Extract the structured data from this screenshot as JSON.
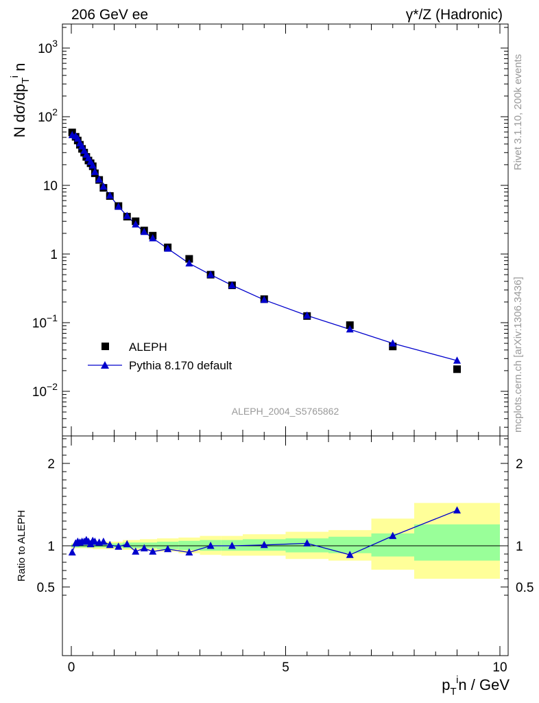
{
  "header": {
    "left_title": "206 GeV ee",
    "right_title": "γ*/Z (Hadronic)"
  },
  "side_labels": {
    "rivet": "Rivet 3.1.10,  200k events",
    "mcplots": "mcplots.cern.ch [arXiv:1306.3436]"
  },
  "analysis_label": "ALEPH_2004_S5765862",
  "chart_data": [
    {
      "type": "scatter",
      "panel": "main",
      "ylabel": "N dσ/dp_T^i n",
      "yscale": "log",
      "ylim": [
        0.003,
        2000
      ],
      "xlim": [
        -0.1,
        10.05
      ],
      "ytick_labels": [
        "10^-2",
        "10^-1",
        "1",
        "10",
        "10^2",
        "10^3"
      ],
      "legend": {
        "placement": "bottom-left",
        "entries": [
          "ALEPH",
          "Pythia 8.170 default"
        ]
      },
      "series": [
        {
          "name": "ALEPH",
          "style": "black squares",
          "x": [
            0.02,
            0.1,
            0.15,
            0.2,
            0.25,
            0.3,
            0.35,
            0.4,
            0.45,
            0.5,
            0.55,
            0.65,
            0.75,
            0.9,
            1.1,
            1.3,
            1.5,
            1.7,
            1.9,
            2.25,
            2.75,
            3.25,
            3.75,
            4.5,
            5.5,
            6.5,
            7.5,
            9.0
          ],
          "values": [
            59,
            51,
            45,
            39,
            34,
            30,
            26,
            23,
            21,
            19,
            15,
            12,
            9.2,
            7.0,
            5.0,
            3.5,
            3.0,
            2.2,
            1.85,
            1.25,
            0.85,
            0.5,
            0.35,
            0.22,
            0.125,
            0.092,
            0.045,
            0.021
          ]
        },
        {
          "name": "Pythia 8.170 default",
          "style": "blue line with triangles",
          "color": "#0000cc",
          "x": [
            0.02,
            0.1,
            0.15,
            0.2,
            0.25,
            0.3,
            0.35,
            0.4,
            0.45,
            0.5,
            0.55,
            0.65,
            0.75,
            0.9,
            1.1,
            1.3,
            1.5,
            1.7,
            1.9,
            2.25,
            2.75,
            3.25,
            3.75,
            4.5,
            5.5,
            6.5,
            7.5,
            9.0
          ],
          "values": [
            54,
            52,
            48,
            41,
            37,
            32,
            28,
            25,
            22,
            19.5,
            15.7,
            12.2,
            9.6,
            7.1,
            4.9,
            3.6,
            2.7,
            2.1,
            1.7,
            1.2,
            0.73,
            0.5,
            0.35,
            0.215,
            0.127,
            0.08,
            0.05,
            0.028
          ]
        }
      ]
    },
    {
      "type": "line",
      "panel": "ratio",
      "xlabel": "p_T^i n / GeV",
      "ylabel": "Ratio to ALEPH",
      "ylim": [
        0.4,
        2.4
      ],
      "xlim": [
        -0.1,
        10.05
      ],
      "xtick_labels": [
        "0",
        "5",
        "10"
      ],
      "ytick_labels": [
        "0.5",
        "1",
        "2"
      ],
      "bands": {
        "colors": {
          "inner": "#99ff99",
          "outer": "#ffff99"
        },
        "bins": [
          {
            "x0": 0.0,
            "x1": 0.25,
            "inner": [
              0.98,
              1.02
            ],
            "outer": [
              0.97,
              1.03
            ]
          },
          {
            "x0": 0.25,
            "x1": 0.5,
            "inner": [
              0.98,
              1.02
            ],
            "outer": [
              0.97,
              1.03
            ]
          },
          {
            "x0": 0.5,
            "x1": 0.8,
            "inner": [
              0.98,
              1.03
            ],
            "outer": [
              0.96,
              1.04
            ]
          },
          {
            "x0": 0.8,
            "x1": 1.2,
            "inner": [
              0.98,
              1.03
            ],
            "outer": [
              0.96,
              1.05
            ]
          },
          {
            "x0": 1.2,
            "x1": 1.6,
            "inner": [
              0.97,
              1.04
            ],
            "outer": [
              0.95,
              1.07
            ]
          },
          {
            "x0": 1.6,
            "x1": 2.0,
            "inner": [
              0.97,
              1.04
            ],
            "outer": [
              0.94,
              1.08
            ]
          },
          {
            "x0": 2.0,
            "x1": 2.5,
            "inner": [
              0.96,
              1.05
            ],
            "outer": [
              0.93,
              1.09
            ]
          },
          {
            "x0": 2.5,
            "x1": 3.0,
            "inner": [
              0.95,
              1.06
            ],
            "outer": [
              0.91,
              1.1
            ]
          },
          {
            "x0": 3.0,
            "x1": 3.5,
            "inner": [
              0.94,
              1.07
            ],
            "outer": [
              0.89,
              1.12
            ]
          },
          {
            "x0": 3.5,
            "x1": 4.0,
            "inner": [
              0.94,
              1.07
            ],
            "outer": [
              0.88,
              1.12
            ]
          },
          {
            "x0": 4.0,
            "x1": 5.0,
            "inner": [
              0.94,
              1.08
            ],
            "outer": [
              0.88,
              1.14
            ]
          },
          {
            "x0": 5.0,
            "x1": 6.0,
            "inner": [
              0.92,
              1.09
            ],
            "outer": [
              0.84,
              1.17
            ]
          },
          {
            "x0": 6.0,
            "x1": 7.0,
            "inner": [
              0.91,
              1.11
            ],
            "outer": [
              0.82,
              1.19
            ]
          },
          {
            "x0": 7.0,
            "x1": 8.0,
            "inner": [
              0.87,
              1.15
            ],
            "outer": [
              0.71,
              1.33
            ]
          },
          {
            "x0": 8.0,
            "x1": 10.0,
            "inner": [
              0.82,
              1.26
            ],
            "outer": [
              0.6,
              1.52
            ]
          }
        ]
      },
      "series": [
        {
          "name": "Pythia 8.170 default",
          "color": "#0000cc",
          "x": [
            0.02,
            0.1,
            0.15,
            0.2,
            0.25,
            0.3,
            0.35,
            0.4,
            0.45,
            0.5,
            0.55,
            0.65,
            0.75,
            0.9,
            1.1,
            1.3,
            1.5,
            1.7,
            1.9,
            2.25,
            2.75,
            3.25,
            3.75,
            4.5,
            5.5,
            6.5,
            7.5,
            9.0
          ],
          "values": [
            0.92,
            1.03,
            1.05,
            1.04,
            1.05,
            1.05,
            1.07,
            1.05,
            1.02,
            1.06,
            1.05,
            1.04,
            1.05,
            1.01,
            0.99,
            1.02,
            0.93,
            0.97,
            0.93,
            0.96,
            0.92,
            1.0,
            1.0,
            1.01,
            1.03,
            0.89,
            1.12,
            1.43
          ]
        }
      ]
    }
  ]
}
